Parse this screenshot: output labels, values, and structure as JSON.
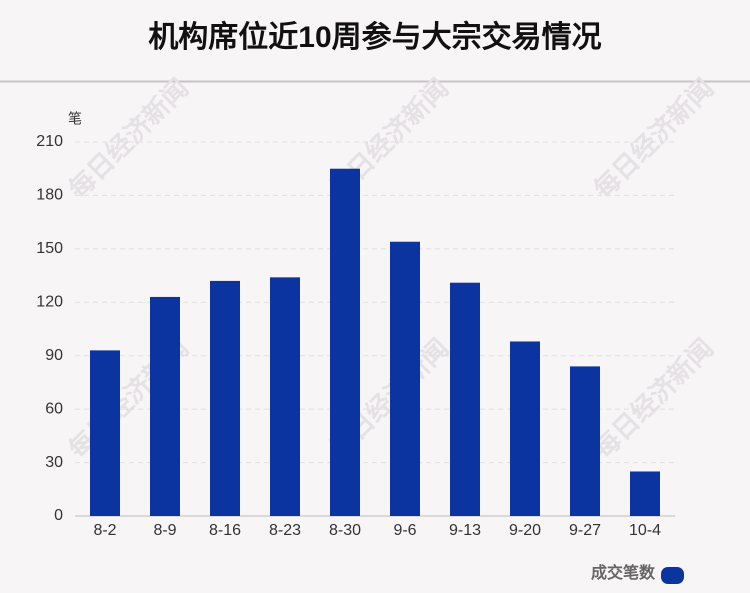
{
  "chart_data": {
    "type": "bar",
    "title": "机构席位近10周参与大宗交易情况",
    "y_label": "笔",
    "categories": [
      "8-2",
      "8-9",
      "8-16",
      "8-23",
      "8-30",
      "9-6",
      "9-13",
      "9-20",
      "9-27",
      "10-4"
    ],
    "series": [
      {
        "name": "成交笔数",
        "color": "#0c34a0",
        "values": [
          93,
          123,
          132,
          134,
          195,
          154,
          131,
          98,
          84,
          25
        ]
      }
    ],
    "ylim": [
      0,
      210
    ],
    "yticks": [
      0,
      30,
      60,
      90,
      120,
      150,
      180,
      210
    ],
    "grid": true,
    "legend": "bottom-right",
    "watermark": "每日经济新闻"
  }
}
